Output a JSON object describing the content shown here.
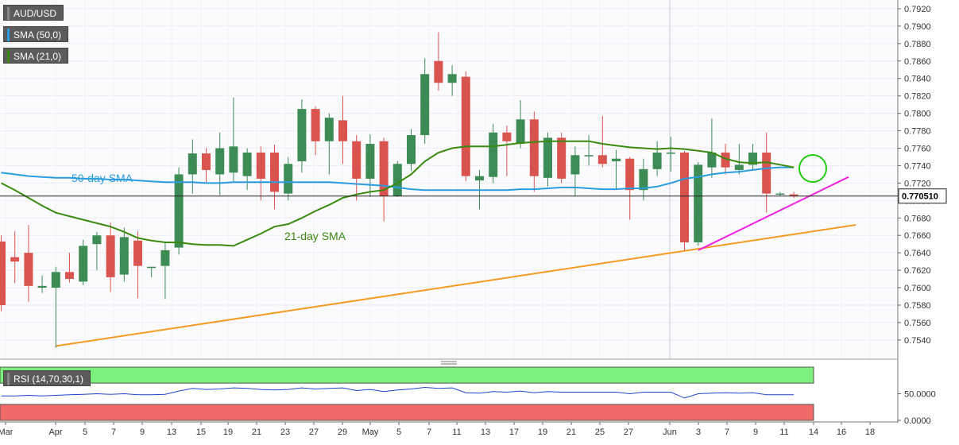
{
  "legend": {
    "symbol": "AUD/USD",
    "sma50": "SMA (50,0)",
    "sma21": "SMA (21,0)",
    "rsi": "RSI (14,70,30,1)"
  },
  "colors": {
    "bull": "#3d8b55",
    "bear": "#d9534f",
    "sma50": "#2a9de0",
    "sma21": "#3a8a10",
    "trend_pink": "#ee22dd",
    "trend_orange": "#f59a23",
    "rsi_line": "#2244cc",
    "rsi_overbought": "#7cf27c",
    "rsi_oversold": "#f06a6a"
  },
  "chart_data": {
    "type": "candlestick",
    "symbol": "AUD/USD",
    "current_price": "0.770510",
    "ylim": [
      0.7518,
      0.793
    ],
    "y_ticks": [
      "0.7540",
      "0.7560",
      "0.7580",
      "0.7600",
      "0.7620",
      "0.7640",
      "0.7660",
      "0.7680",
      "0.7700",
      "0.7720",
      "0.7740",
      "0.7760",
      "0.7780",
      "0.7800",
      "0.7820",
      "0.7840",
      "0.7860",
      "0.7880",
      "0.7900",
      "0.7920"
    ],
    "x_ticks": [
      "Mar",
      "Apr",
      "5",
      "7",
      "9",
      "13",
      "15",
      "19",
      "21",
      "23",
      "27",
      "29",
      "May",
      "5",
      "7",
      "11",
      "13",
      "17",
      "19",
      "21",
      "25",
      "27",
      "Jun",
      "3",
      "7",
      "9",
      "11",
      "14",
      "16",
      "18"
    ],
    "annotations": {
      "sma50_label": "50-day SMA",
      "sma21_label": "21-day SMA"
    },
    "candles": [
      {
        "o": 0.7653,
        "h": 0.766,
        "l": 0.7573,
        "c": 0.758
      },
      {
        "o": 0.7635,
        "h": 0.7665,
        "l": 0.7605,
        "c": 0.763
      },
      {
        "o": 0.764,
        "h": 0.7672,
        "l": 0.7584,
        "c": 0.7602
      },
      {
        "o": 0.76,
        "h": 0.7614,
        "l": 0.7594,
        "c": 0.7602
      },
      {
        "o": 0.76,
        "h": 0.7624,
        "l": 0.7531,
        "c": 0.7618
      },
      {
        "o": 0.7618,
        "h": 0.764,
        "l": 0.7606,
        "c": 0.761
      },
      {
        "o": 0.7607,
        "h": 0.7655,
        "l": 0.7603,
        "c": 0.7648
      },
      {
        "o": 0.765,
        "h": 0.7664,
        "l": 0.762,
        "c": 0.766
      },
      {
        "o": 0.766,
        "h": 0.7675,
        "l": 0.7595,
        "c": 0.7612
      },
      {
        "o": 0.7615,
        "h": 0.7669,
        "l": 0.7607,
        "c": 0.7658
      },
      {
        "o": 0.7654,
        "h": 0.7665,
        "l": 0.7588,
        "c": 0.7625
      },
      {
        "o": 0.7624,
        "h": 0.7624,
        "l": 0.7612,
        "c": 0.7624
      },
      {
        "o": 0.7625,
        "h": 0.7652,
        "l": 0.7587,
        "c": 0.7643
      },
      {
        "o": 0.7646,
        "h": 0.7738,
        "l": 0.7638,
        "c": 0.773
      },
      {
        "o": 0.773,
        "h": 0.777,
        "l": 0.7708,
        "c": 0.7754
      },
      {
        "o": 0.7754,
        "h": 0.776,
        "l": 0.772,
        "c": 0.7735
      },
      {
        "o": 0.773,
        "h": 0.7778,
        "l": 0.7706,
        "c": 0.776
      },
      {
        "o": 0.7732,
        "h": 0.7818,
        "l": 0.7722,
        "c": 0.7762
      },
      {
        "o": 0.7728,
        "h": 0.776,
        "l": 0.7712,
        "c": 0.7755
      },
      {
        "o": 0.7755,
        "h": 0.7762,
        "l": 0.77,
        "c": 0.7725
      },
      {
        "o": 0.7755,
        "h": 0.7764,
        "l": 0.769,
        "c": 0.771
      },
      {
        "o": 0.7708,
        "h": 0.775,
        "l": 0.77,
        "c": 0.7742
      },
      {
        "o": 0.7745,
        "h": 0.7816,
        "l": 0.7732,
        "c": 0.7805
      },
      {
        "o": 0.7805,
        "h": 0.7808,
        "l": 0.7752,
        "c": 0.7768
      },
      {
        "o": 0.7768,
        "h": 0.78,
        "l": 0.773,
        "c": 0.7795
      },
      {
        "o": 0.7792,
        "h": 0.782,
        "l": 0.7742,
        "c": 0.7768
      },
      {
        "o": 0.7768,
        "h": 0.7775,
        "l": 0.77,
        "c": 0.7725
      },
      {
        "o": 0.7725,
        "h": 0.7776,
        "l": 0.7704,
        "c": 0.7765
      },
      {
        "o": 0.7768,
        "h": 0.7772,
        "l": 0.7676,
        "c": 0.7705
      },
      {
        "o": 0.7705,
        "h": 0.7745,
        "l": 0.7704,
        "c": 0.7742
      },
      {
        "o": 0.7742,
        "h": 0.7782,
        "l": 0.7734,
        "c": 0.7775
      },
      {
        "o": 0.7775,
        "h": 0.7863,
        "l": 0.7765,
        "c": 0.7845
      },
      {
        "o": 0.786,
        "h": 0.7893,
        "l": 0.7826,
        "c": 0.7835
      },
      {
        "o": 0.7835,
        "h": 0.7855,
        "l": 0.782,
        "c": 0.7845
      },
      {
        "o": 0.7842,
        "h": 0.7848,
        "l": 0.7722,
        "c": 0.7728
      },
      {
        "o": 0.7723,
        "h": 0.7735,
        "l": 0.769,
        "c": 0.7728
      },
      {
        "o": 0.7727,
        "h": 0.7788,
        "l": 0.772,
        "c": 0.7778
      },
      {
        "o": 0.7778,
        "h": 0.7786,
        "l": 0.7728,
        "c": 0.7768
      },
      {
        "o": 0.7765,
        "h": 0.7815,
        "l": 0.776,
        "c": 0.7793
      },
      {
        "o": 0.7793,
        "h": 0.7802,
        "l": 0.771,
        "c": 0.7728
      },
      {
        "o": 0.7726,
        "h": 0.7778,
        "l": 0.7716,
        "c": 0.7772
      },
      {
        "o": 0.7772,
        "h": 0.7778,
        "l": 0.772,
        "c": 0.7725
      },
      {
        "o": 0.773,
        "h": 0.7762,
        "l": 0.7705,
        "c": 0.7752
      },
      {
        "o": 0.7752,
        "h": 0.7775,
        "l": 0.774,
        "c": 0.7752
      },
      {
        "o": 0.7752,
        "h": 0.7797,
        "l": 0.7738,
        "c": 0.7742
      },
      {
        "o": 0.7745,
        "h": 0.7758,
        "l": 0.7712,
        "c": 0.7748
      },
      {
        "o": 0.7748,
        "h": 0.775,
        "l": 0.7678,
        "c": 0.7712
      },
      {
        "o": 0.7712,
        "h": 0.7748,
        "l": 0.77,
        "c": 0.7736
      },
      {
        "o": 0.7736,
        "h": 0.7768,
        "l": 0.7728,
        "c": 0.7755
      },
      {
        "o": 0.7755,
        "h": 0.7773,
        "l": 0.7733,
        "c": 0.7755
      },
      {
        "o": 0.7755,
        "h": 0.7757,
        "l": 0.7643,
        "c": 0.7652
      },
      {
        "o": 0.7652,
        "h": 0.7744,
        "l": 0.7648,
        "c": 0.7741
      },
      {
        "o": 0.7738,
        "h": 0.7794,
        "l": 0.7726,
        "c": 0.7755
      },
      {
        "o": 0.7755,
        "h": 0.7765,
        "l": 0.773,
        "c": 0.7738
      },
      {
        "o": 0.7735,
        "h": 0.7765,
        "l": 0.773,
        "c": 0.7741
      },
      {
        "o": 0.7741,
        "h": 0.7765,
        "l": 0.7734,
        "c": 0.7755
      },
      {
        "o": 0.7755,
        "h": 0.7778,
        "l": 0.7686,
        "c": 0.7708
      },
      {
        "o": 0.7708,
        "h": 0.771,
        "l": 0.7705,
        "c": 0.7708
      },
      {
        "o": 0.7707,
        "h": 0.771,
        "l": 0.7703,
        "c": 0.7705
      }
    ],
    "sma50": [
      0.7732,
      0.773,
      0.7728,
      0.7727,
      0.7726,
      0.7726,
      0.7725,
      0.7725,
      0.7724,
      0.7724,
      0.7723,
      0.7722,
      0.7721,
      0.7721,
      0.7721,
      0.772,
      0.772,
      0.7721,
      0.7721,
      0.7721,
      0.7721,
      0.7721,
      0.7721,
      0.7721,
      0.7721,
      0.772,
      0.7719,
      0.7718,
      0.7717,
      0.7715,
      0.7713,
      0.7712,
      0.7712,
      0.7712,
      0.7712,
      0.7712,
      0.7712,
      0.7712,
      0.7713,
      0.7713,
      0.7714,
      0.7715,
      0.7715,
      0.7714,
      0.7713,
      0.7713,
      0.7714,
      0.7714,
      0.7716,
      0.772,
      0.7725,
      0.7727,
      0.773,
      0.7732,
      0.7733,
      0.7735,
      0.7737,
      0.7738,
      0.7738
    ],
    "sma21": [
      0.772,
      0.7712,
      0.7703,
      0.7694,
      0.7686,
      0.7682,
      0.7678,
      0.7674,
      0.767,
      0.7664,
      0.7657,
      0.7654,
      0.7652,
      0.7652,
      0.765,
      0.7649,
      0.7649,
      0.7648,
      0.7655,
      0.7662,
      0.767,
      0.7673,
      0.768,
      0.7688,
      0.7695,
      0.7703,
      0.7707,
      0.771,
      0.7712,
      0.772,
      0.773,
      0.7745,
      0.7755,
      0.776,
      0.7762,
      0.7762,
      0.7762,
      0.7764,
      0.7766,
      0.7767,
      0.7768,
      0.7768,
      0.7768,
      0.7768,
      0.7765,
      0.7763,
      0.7761,
      0.776,
      0.7759,
      0.776,
      0.7759,
      0.7757,
      0.7755,
      0.7748,
      0.7744,
      0.7743,
      0.7744,
      0.7741,
      0.7738
    ],
    "trendlines": [
      {
        "name": "pink",
        "start": {
          "date": "Jun 3",
          "value": 0.7643
        },
        "end": {
          "date": "Jun 17",
          "value": 0.7727
        }
      },
      {
        "name": "orange",
        "start": {
          "date": "Apr 1",
          "value": 0.7533
        },
        "end": {
          "date": "Jun 19",
          "value": 0.7672
        }
      }
    ],
    "rsi": {
      "y_ticks": [
        "50.0000",
        "0.0000"
      ],
      "levels": [
        70,
        30
      ],
      "values": [
        46,
        46,
        47,
        46,
        47,
        48,
        49,
        50,
        49,
        50,
        48,
        48,
        49,
        55,
        60,
        58,
        59,
        61,
        60,
        58,
        57,
        58,
        61,
        59,
        60,
        61,
        56,
        58,
        54,
        57,
        59,
        62,
        60,
        61,
        52,
        51,
        54,
        53,
        55,
        52,
        54,
        53,
        53,
        53,
        53,
        53,
        50,
        53,
        53,
        53,
        42,
        50,
        51,
        52,
        51,
        52,
        48,
        48,
        48
      ]
    }
  }
}
